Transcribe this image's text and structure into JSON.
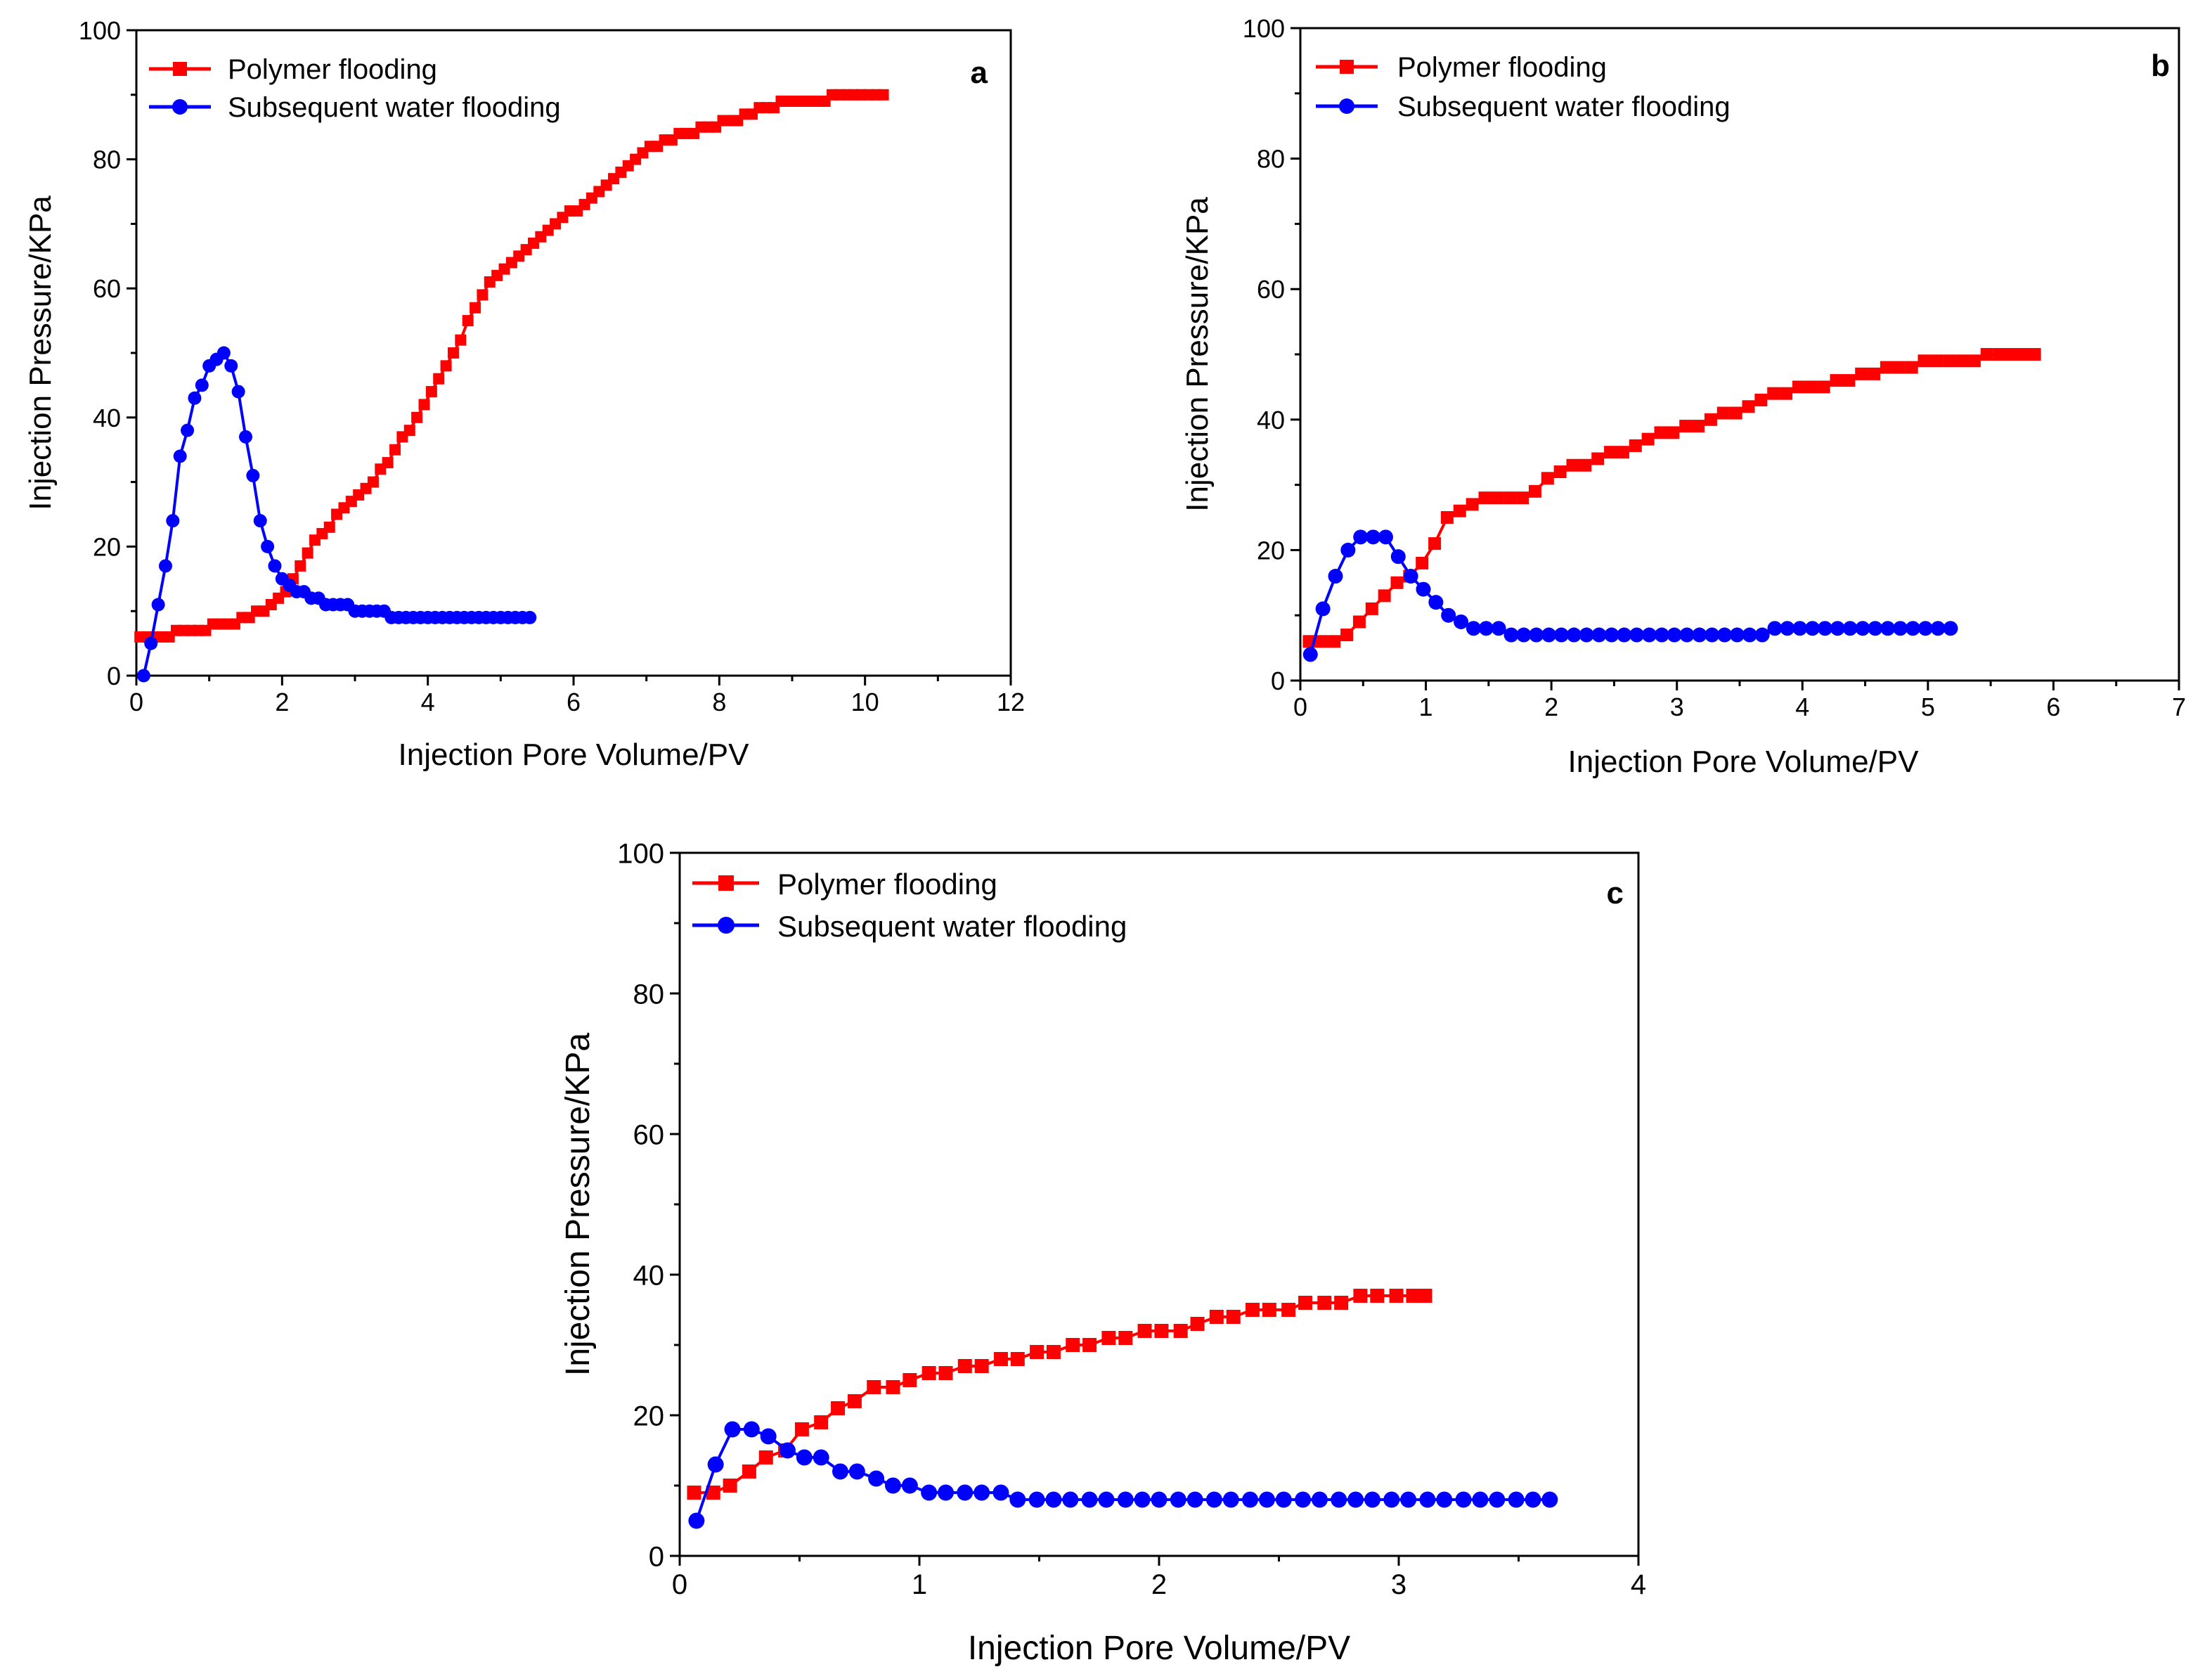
{
  "colors": {
    "polymer": "#ff0000",
    "water": "#0000ff",
    "axis": "#000000"
  },
  "chart_data": [
    {
      "type": "line",
      "panel_label": "a",
      "xlabel": "Injection Pore Volume/PV",
      "ylabel": "Injection Pressure/KPa",
      "xlim": [
        0,
        12
      ],
      "ylim": [
        0,
        100
      ],
      "xticks": [
        0,
        2,
        4,
        6,
        8,
        10,
        12
      ],
      "yticks": [
        0,
        20,
        40,
        60,
        80,
        100
      ],
      "legend_position": "top-left",
      "series": [
        {
          "name": "Polymer flooding",
          "marker": "square",
          "color": "#ff0000",
          "x": [
            0.05,
            0.15,
            0.25,
            0.35,
            0.45,
            0.55,
            0.65,
            0.75,
            0.85,
            0.95,
            1.05,
            1.15,
            1.25,
            1.35,
            1.45,
            1.55,
            1.65,
            1.75,
            1.85,
            1.95,
            2.05,
            2.15,
            2.25,
            2.35,
            2.45,
            2.55,
            2.65,
            2.75,
            2.85,
            2.95,
            3.05,
            3.15,
            3.25,
            3.35,
            3.45,
            3.55,
            3.65,
            3.75,
            3.85,
            3.95,
            4.05,
            4.15,
            4.25,
            4.35,
            4.45,
            4.55,
            4.65,
            4.75,
            4.85,
            4.95,
            5.05,
            5.15,
            5.25,
            5.35,
            5.45,
            5.55,
            5.65,
            5.75,
            5.85,
            5.95,
            6.05,
            6.15,
            6.25,
            6.35,
            6.45,
            6.55,
            6.65,
            6.75,
            6.85,
            6.95,
            7.05,
            7.15,
            7.25,
            7.35,
            7.45,
            7.55,
            7.65,
            7.75,
            7.85,
            7.95,
            8.05,
            8.15,
            8.25,
            8.35,
            8.45,
            8.55,
            8.65,
            8.75,
            8.85,
            8.95,
            9.05,
            9.15,
            9.25,
            9.35,
            9.45,
            9.55,
            9.65,
            9.75,
            9.85,
            9.95,
            10.05,
            10.15,
            10.25
          ],
          "y": [
            6,
            6,
            6,
            6,
            6,
            7,
            7,
            7,
            7,
            7,
            8,
            8,
            8,
            8,
            9,
            9,
            10,
            10,
            11,
            12,
            13,
            15,
            17,
            19,
            21,
            22,
            23,
            25,
            26,
            27,
            28,
            29,
            30,
            32,
            33,
            35,
            37,
            38,
            40,
            42,
            44,
            46,
            48,
            50,
            52,
            55,
            57,
            59,
            61,
            62,
            63,
            64,
            65,
            66,
            67,
            68,
            69,
            70,
            71,
            72,
            72,
            73,
            74,
            75,
            76,
            77,
            78,
            79,
            80,
            81,
            82,
            82,
            83,
            83,
            84,
            84,
            84,
            85,
            85,
            85,
            86,
            86,
            86,
            87,
            87,
            88,
            88,
            88,
            89,
            89,
            89,
            89,
            89,
            89,
            89,
            90,
            90,
            90,
            90,
            90,
            90,
            90,
            90
          ]
        },
        {
          "name": "Subsequent water flooding",
          "marker": "circle",
          "color": "#0000ff",
          "x": [
            0.1,
            0.2,
            0.3,
            0.4,
            0.5,
            0.6,
            0.7,
            0.8,
            0.9,
            1.0,
            1.1,
            1.2,
            1.3,
            1.4,
            1.5,
            1.6,
            1.7,
            1.8,
            1.9,
            2.0,
            2.1,
            2.2,
            2.3,
            2.4,
            2.5,
            2.6,
            2.7,
            2.8,
            2.9,
            3.0,
            3.1,
            3.2,
            3.3,
            3.4,
            3.5,
            3.6,
            3.7,
            3.8,
            3.9,
            4.0,
            4.1,
            4.2,
            4.3,
            4.4,
            4.5,
            4.6,
            4.7,
            4.8,
            4.9,
            5.0,
            5.1,
            5.2,
            5.3,
            5.4
          ],
          "y": [
            0,
            5,
            11,
            17,
            24,
            34,
            38,
            43,
            45,
            48,
            49,
            50,
            48,
            44,
            37,
            31,
            24,
            20,
            17,
            15,
            14,
            13,
            13,
            12,
            12,
            11,
            11,
            11,
            11,
            10,
            10,
            10,
            10,
            10,
            9,
            9,
            9,
            9,
            9,
            9,
            9,
            9,
            9,
            9,
            9,
            9,
            9,
            9,
            9,
            9,
            9,
            9,
            9,
            9
          ]
        }
      ]
    },
    {
      "type": "line",
      "panel_label": "b",
      "xlabel": "Injection Pore Volume/PV",
      "ylabel": "Injection Pressure/KPa",
      "xlim": [
        0,
        7
      ],
      "ylim": [
        0,
        100
      ],
      "xticks": [
        0,
        1,
        2,
        3,
        4,
        5,
        6,
        7
      ],
      "yticks": [
        0,
        20,
        40,
        60,
        80,
        100
      ],
      "legend_position": "top-left",
      "series": [
        {
          "name": "Polymer flooding",
          "marker": "square",
          "color": "#ff0000",
          "x": [
            0.07,
            0.17,
            0.27,
            0.37,
            0.47,
            0.57,
            0.67,
            0.77,
            0.87,
            0.97,
            1.07,
            1.17,
            1.27,
            1.37,
            1.47,
            1.57,
            1.67,
            1.77,
            1.87,
            1.97,
            2.07,
            2.17,
            2.27,
            2.37,
            2.47,
            2.57,
            2.67,
            2.77,
            2.87,
            2.97,
            3.07,
            3.17,
            3.27,
            3.37,
            3.47,
            3.57,
            3.67,
            3.77,
            3.87,
            3.97,
            4.07,
            4.17,
            4.27,
            4.37,
            4.47,
            4.57,
            4.67,
            4.77,
            4.87,
            4.97,
            5.07,
            5.17,
            5.27,
            5.37,
            5.47,
            5.57,
            5.67,
            5.77,
            5.85
          ],
          "y": [
            6,
            6,
            6,
            7,
            9,
            11,
            13,
            15,
            16,
            18,
            21,
            25,
            26,
            27,
            28,
            28,
            28,
            28,
            29,
            31,
            32,
            33,
            33,
            34,
            35,
            35,
            36,
            37,
            38,
            38,
            39,
            39,
            40,
            41,
            41,
            42,
            43,
            44,
            44,
            45,
            45,
            45,
            46,
            46,
            47,
            47,
            48,
            48,
            48,
            49,
            49,
            49,
            49,
            49,
            50,
            50,
            50,
            50,
            50
          ]
        },
        {
          "name": "Subsequent water flooding",
          "marker": "circle",
          "color": "#0000ff",
          "x": [
            0.08,
            0.18,
            0.28,
            0.38,
            0.48,
            0.58,
            0.68,
            0.78,
            0.88,
            0.98,
            1.08,
            1.18,
            1.28,
            1.38,
            1.48,
            1.58,
            1.68,
            1.78,
            1.88,
            1.98,
            2.08,
            2.18,
            2.28,
            2.38,
            2.48,
            2.58,
            2.68,
            2.78,
            2.88,
            2.98,
            3.08,
            3.18,
            3.28,
            3.38,
            3.48,
            3.58,
            3.68,
            3.78,
            3.88,
            3.98,
            4.08,
            4.18,
            4.28,
            4.38,
            4.48,
            4.58,
            4.68,
            4.78,
            4.88,
            4.98,
            5.08,
            5.18
          ],
          "y": [
            4,
            11,
            16,
            20,
            22,
            22,
            22,
            19,
            16,
            14,
            12,
            10,
            9,
            8,
            8,
            8,
            7,
            7,
            7,
            7,
            7,
            7,
            7,
            7,
            7,
            7,
            7,
            7,
            7,
            7,
            7,
            7,
            7,
            7,
            7,
            7,
            7,
            8,
            8,
            8,
            8,
            8,
            8,
            8,
            8,
            8,
            8,
            8,
            8,
            8,
            8,
            8
          ]
        }
      ]
    },
    {
      "type": "line",
      "panel_label": "c",
      "xlabel": "Injection Pore Volume/PV",
      "ylabel": "Injection Pressure/KPa",
      "xlim": [
        0,
        4
      ],
      "ylim": [
        0,
        100
      ],
      "xticks": [
        0,
        1,
        2,
        3,
        4
      ],
      "yticks": [
        0,
        20,
        40,
        60,
        80,
        100
      ],
      "legend_position": "top-left",
      "series": [
        {
          "name": "Polymer flooding",
          "marker": "square",
          "color": "#ff0000",
          "x": [
            0.06,
            0.14,
            0.21,
            0.29,
            0.36,
            0.44,
            0.51,
            0.59,
            0.66,
            0.73,
            0.81,
            0.89,
            0.96,
            1.04,
            1.11,
            1.19,
            1.26,
            1.34,
            1.41,
            1.49,
            1.56,
            1.64,
            1.71,
            1.79,
            1.86,
            1.94,
            2.01,
            2.09,
            2.16,
            2.24,
            2.31,
            2.39,
            2.46,
            2.54,
            2.61,
            2.69,
            2.76,
            2.84,
            2.91,
            2.99,
            3.06,
            3.11
          ],
          "y": [
            9,
            9,
            10,
            12,
            14,
            15,
            18,
            19,
            21,
            22,
            24,
            24,
            25,
            26,
            26,
            27,
            27,
            28,
            28,
            29,
            29,
            30,
            30,
            31,
            31,
            32,
            32,
            32,
            33,
            34,
            34,
            35,
            35,
            35,
            36,
            36,
            36,
            37,
            37,
            37,
            37,
            37
          ]
        },
        {
          "name": "Subsequent water flooding",
          "marker": "circle",
          "color": "#0000ff",
          "x": [
            0.07,
            0.15,
            0.22,
            0.3,
            0.37,
            0.45,
            0.52,
            0.59,
            0.67,
            0.74,
            0.82,
            0.89,
            0.96,
            1.04,
            1.11,
            1.19,
            1.26,
            1.34,
            1.41,
            1.49,
            1.56,
            1.63,
            1.71,
            1.78,
            1.86,
            1.93,
            2.0,
            2.08,
            2.15,
            2.23,
            2.3,
            2.38,
            2.45,
            2.52,
            2.6,
            2.67,
            2.75,
            2.82,
            2.89,
            2.97,
            3.04,
            3.12,
            3.19,
            3.27,
            3.34,
            3.41,
            3.49,
            3.56,
            3.63
          ],
          "y": [
            5,
            13,
            18,
            18,
            17,
            15,
            14,
            14,
            12,
            12,
            11,
            10,
            10,
            9,
            9,
            9,
            9,
            9,
            8,
            8,
            8,
            8,
            8,
            8,
            8,
            8,
            8,
            8,
            8,
            8,
            8,
            8,
            8,
            8,
            8,
            8,
            8,
            8,
            8,
            8,
            8,
            8,
            8,
            8,
            8,
            8,
            8,
            8,
            8
          ]
        }
      ]
    }
  ]
}
